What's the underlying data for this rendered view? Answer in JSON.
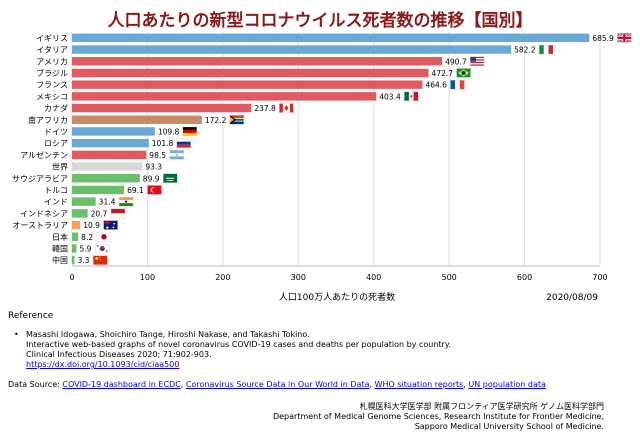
{
  "chart_data": {
    "type": "bar",
    "orientation": "horizontal",
    "title": "人口あたりの新型コロナウイルス死者数の推移【国別】",
    "xlabel": "人口100万人あたりの死者数",
    "date": "2020/08/09",
    "xlim": [
      0,
      700
    ],
    "xticks": [
      "0",
      "100",
      "200",
      "300",
      "400",
      "500",
      "600",
      "700"
    ],
    "grid": true,
    "categories": [
      "イギリス",
      "イタリア",
      "アメリカ",
      "ブラジル",
      "フランス",
      "メキシコ",
      "カナダ",
      "南アフリカ",
      "ドイツ",
      "ロシア",
      "アルゼンチン",
      "世界",
      "サウジアラビア",
      "トルコ",
      "インド",
      "インドネシア",
      "オーストラリア",
      "日本",
      "韓国",
      "中国"
    ],
    "values": [
      685.9,
      582.2,
      490.7,
      472.7,
      464.6,
      403.4,
      237.8,
      172.2,
      109.8,
      101.8,
      98.5,
      93.3,
      89.9,
      69.1,
      31.4,
      20.7,
      10.9,
      8.2,
      5.9,
      3.3
    ],
    "value_labels": [
      "685.9",
      "582.2",
      "490.7",
      "472.7",
      "464.6",
      "403.4",
      "237.8",
      "172.2",
      "109.8",
      "101.8",
      "98.5",
      "93.3",
      "89.9",
      "69.1",
      "31.4",
      "20.7",
      "10.9",
      "8.2",
      "5.9",
      "3.3"
    ],
    "bar_colors": [
      "#6aa8d6",
      "#6aa8d6",
      "#e15a5f",
      "#e15a5f",
      "#e15a5f",
      "#e15a5f",
      "#e15a5f",
      "#c78b68",
      "#6aa8d6",
      "#6aa8d6",
      "#e15a5f",
      "#d9d9d9",
      "#6abf6a",
      "#6abf6a",
      "#6abf6a",
      "#6abf6a",
      "#f2a65a",
      "#6abf6a",
      "#6abf6a",
      "#6abf6a"
    ],
    "flag_icons": [
      "uk-flag-icon",
      "italy-flag-icon",
      "usa-flag-icon",
      "brazil-flag-icon",
      "france-flag-icon",
      "mexico-flag-icon",
      "canada-flag-icon",
      "south-africa-flag-icon",
      "germany-flag-icon",
      "russia-flag-icon",
      "argentina-flag-icon",
      "",
      "saudi-arabia-flag-icon",
      "turkey-flag-icon",
      "india-flag-icon",
      "indonesia-flag-icon",
      "australia-flag-icon",
      "japan-flag-icon",
      "korea-flag-icon",
      "china-flag-icon"
    ]
  },
  "reference": {
    "heading": "Reference",
    "bullet": "•",
    "authors": "Masashi Idogawa, Shoichiro Tange, Hiroshi Nakase, and Takashi Tokino.",
    "title": "Interactive web-based graphs of novel coronavirus COVID-19 cases and deaths per population by country.",
    "journal": "Clinical Infectious Diseases 2020; 71:902-903.",
    "doi": "https://dx.doi.org/10.1093/cid/ciaa500"
  },
  "data_source": {
    "label": "Data Source: ",
    "links": [
      "COVID-19 dashboard in ECDC",
      "Coronavirus Source Data in Our World in Data",
      "WHO situation reports",
      "UN population data"
    ],
    "separator": ", "
  },
  "affiliation": {
    "line1": "札幌医科大学医学部 附属フロンティア医学研究所 ゲノム医科学部門",
    "line2": "Department of Medical Genome Sciences, Research Institute for Frontier Medicine,",
    "line3": "Sapporo Medical University School of Medicine."
  }
}
